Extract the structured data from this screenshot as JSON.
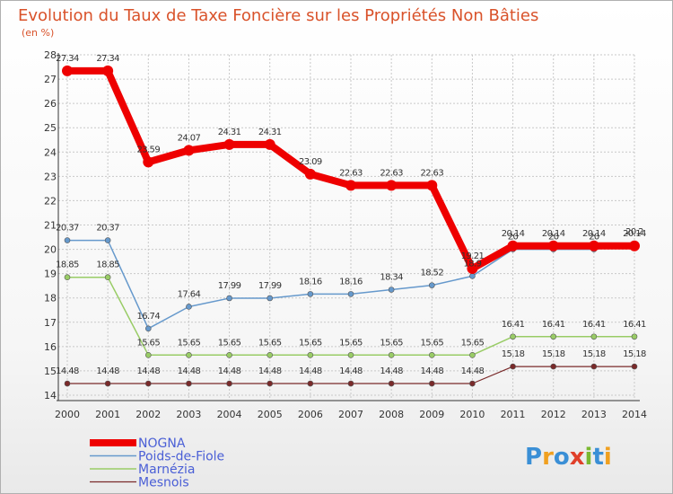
{
  "chart_data": {
    "type": "line",
    "title": "Evolution du Taux de Taxe Foncière sur les Propriétés Non Bâties",
    "subtitle": "(en %)",
    "xlabel": "",
    "ylabel": "",
    "ylim": [
      14,
      28
    ],
    "yticks": [
      14,
      15,
      16,
      17,
      18,
      19,
      20,
      21,
      22,
      23,
      24,
      25,
      26,
      27,
      28
    ],
    "x": [
      "2000",
      "2001",
      "2002",
      "2003",
      "2004",
      "2005",
      "2006",
      "2007",
      "2008",
      "2009",
      "2010",
      "2011",
      "2012",
      "2013",
      "2014"
    ],
    "grid": true,
    "legend_position": "bottom-left",
    "series": [
      {
        "name": "Mesnois",
        "color": "#7a2a2a",
        "width": 1.2,
        "values": [
          14.48,
          14.48,
          14.48,
          14.48,
          14.48,
          14.48,
          14.48,
          14.48,
          14.48,
          14.48,
          14.48,
          15.18,
          15.18,
          15.18,
          15.18
        ]
      },
      {
        "name": "Marnézia",
        "color": "#99cc66",
        "width": 1.5,
        "values": [
          18.85,
          18.85,
          15.65,
          15.65,
          15.65,
          15.65,
          15.65,
          15.65,
          15.65,
          15.65,
          15.65,
          16.41,
          16.41,
          16.41,
          16.41
        ]
      },
      {
        "name": "Poids-de-Fiole",
        "color": "#6699cc",
        "width": 1.5,
        "values": [
          20.37,
          20.37,
          16.74,
          17.64,
          17.99,
          17.99,
          18.16,
          18.16,
          18.34,
          18.52,
          18.9,
          20,
          20,
          20,
          20.2
        ]
      },
      {
        "name": "NOGNA",
        "color": "#ee0000",
        "width": 8,
        "values": [
          27.34,
          27.34,
          23.59,
          24.07,
          24.31,
          24.31,
          23.09,
          22.63,
          22.63,
          22.63,
          19.21,
          20.14,
          20.14,
          20.14,
          20.14
        ]
      }
    ],
    "data_labels": [
      {
        "series": "NOGNA",
        "labels": [
          "27.34",
          "27.34",
          "23.59",
          "24.07",
          "24.31",
          "24.31",
          "23.09",
          "22.63",
          "22.63",
          "22.63",
          "19.21",
          "20.14",
          "20.14",
          "20.14",
          "20.14"
        ]
      },
      {
        "series": "Poids-de-Fiole",
        "labels": [
          "20.37",
          "20.37",
          "16.74",
          "17.64",
          "17.99",
          "17.99",
          "18.16",
          "18.16",
          "18.34",
          "18.52",
          "18.9",
          "20",
          "20",
          "20",
          "20.2"
        ]
      },
      {
        "series": "Marnézia",
        "labels": [
          "18.85",
          "18.85",
          "15.65",
          "15.65",
          "15.65",
          "15.65",
          "15.65",
          "15.65",
          "15.65",
          "15.65",
          "15.65",
          "16.41",
          "16.41",
          "16.41",
          "16.41"
        ]
      },
      {
        "series": "Mesnois",
        "labels": [
          "14.48",
          "14.48",
          "14.48",
          "14.48",
          "14.48",
          "14.48",
          "14.48",
          "14.48",
          "14.48",
          "14.48",
          "14.48",
          "15.18",
          "15.18",
          "15.18",
          "15.18"
        ]
      }
    ],
    "legend": [
      "NOGNA",
      "Poids-de-Fiole",
      "Marnézia",
      "Mesnois"
    ]
  },
  "logo": {
    "text": "Proxiti",
    "letters": [
      {
        "ch": "P",
        "color": "#3a8fd6"
      },
      {
        "ch": "r",
        "color": "#f0a020"
      },
      {
        "ch": "o",
        "color": "#3a8fd6"
      },
      {
        "ch": "x",
        "color": "#e0402a"
      },
      {
        "ch": "i",
        "color": "#7ab830"
      },
      {
        "ch": "t",
        "color": "#3a8fd6"
      },
      {
        "ch": "i",
        "color": "#f0a020"
      }
    ]
  }
}
